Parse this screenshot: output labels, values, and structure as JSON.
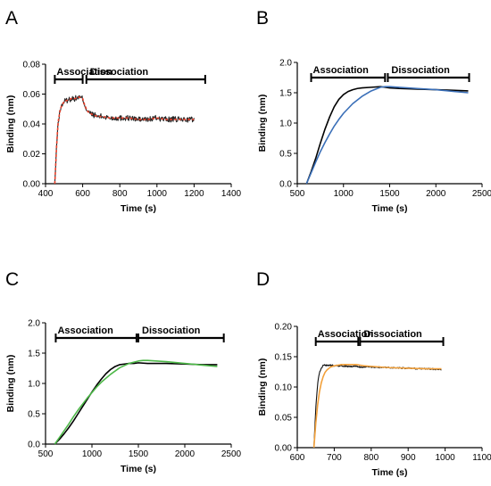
{
  "figure": {
    "panel_letters": [
      "A",
      "B",
      "C",
      "D"
    ]
  },
  "chart_data": [
    {
      "panel": "A",
      "type": "line",
      "xlabel": "Time (s)",
      "ylabel": "Binding (nm)",
      "xlim": [
        400,
        1400
      ],
      "ylim": [
        0,
        0.08
      ],
      "xticks": [
        400,
        600,
        800,
        1000,
        1200,
        1400
      ],
      "xtick_labels": [
        "400",
        "600",
        "800",
        "1000",
        "1200",
        "1400"
      ],
      "yticks": [
        0,
        0.02,
        0.04,
        0.06,
        0.08
      ],
      "ytick_labels": [
        "0.00",
        "0.02",
        "0.04",
        "0.06",
        "0.08"
      ],
      "phases": [
        {
          "label": "Association",
          "start": 450,
          "end": 600
        },
        {
          "label": "Dissociation",
          "start": 620,
          "end": 1260
        }
      ],
      "series": [
        {
          "role": "measured",
          "color": "#262626",
          "noisy": true,
          "noise": 0.0019,
          "dash": "",
          "x": [
            450,
            455,
            460,
            465,
            470,
            480,
            490,
            500,
            520,
            540,
            560,
            580,
            600,
            610,
            620,
            630,
            640,
            660,
            680,
            700,
            750,
            800,
            850,
            900,
            950,
            1000,
            1050,
            1100,
            1150,
            1200
          ],
          "y": [
            0.0,
            0.013,
            0.026,
            0.036,
            0.043,
            0.05,
            0.053,
            0.055,
            0.056,
            0.057,
            0.057,
            0.058,
            0.057,
            0.053,
            0.05,
            0.048,
            0.047,
            0.046,
            0.045,
            0.045,
            0.044,
            0.044,
            0.044,
            0.043,
            0.043,
            0.044,
            0.043,
            0.043,
            0.043,
            0.043
          ]
        },
        {
          "role": "fit",
          "color": "#e8412c",
          "noisy": false,
          "noise": 0,
          "dash": "3,2",
          "x": [
            450,
            455,
            460,
            465,
            470,
            480,
            490,
            500,
            520,
            540,
            560,
            580,
            600,
            610,
            620,
            630,
            640,
            660,
            680,
            700,
            750,
            800,
            850,
            900,
            950,
            1000,
            1050,
            1100,
            1150,
            1200
          ],
          "y": [
            0.0,
            0.013,
            0.026,
            0.036,
            0.043,
            0.05,
            0.053,
            0.055,
            0.056,
            0.057,
            0.057,
            0.058,
            0.057,
            0.053,
            0.05,
            0.048,
            0.047,
            0.046,
            0.045,
            0.045,
            0.044,
            0.044,
            0.044,
            0.043,
            0.043,
            0.044,
            0.043,
            0.043,
            0.043,
            0.043
          ]
        }
      ]
    },
    {
      "panel": "B",
      "type": "line",
      "xlabel": "Time (s)",
      "ylabel": "Binding (nm)",
      "xlim": [
        500,
        2500
      ],
      "ylim": [
        0,
        2.0
      ],
      "xticks": [
        500,
        1000,
        1500,
        2000,
        2500
      ],
      "xtick_labels": [
        "500",
        "1000",
        "1500",
        "2000",
        "2500"
      ],
      "yticks": [
        0,
        0.5,
        1.0,
        1.5,
        2.0
      ],
      "ytick_labels": [
        "0.0",
        "0.5",
        "1.0",
        "1.5",
        "2.0"
      ],
      "phases": [
        {
          "label": "Association",
          "start": 650,
          "end": 1450
        },
        {
          "label": "Dissociation",
          "start": 1480,
          "end": 2360
        }
      ],
      "series": [
        {
          "role": "measured",
          "color": "#000000",
          "noisy": false,
          "noise": 0,
          "dash": "",
          "x": [
            600,
            650,
            700,
            750,
            800,
            850,
            900,
            950,
            1000,
            1050,
            1100,
            1150,
            1200,
            1300,
            1400,
            1450,
            1500,
            1600,
            1800,
            2000,
            2200,
            2350
          ],
          "y": [
            0.0,
            0.2,
            0.42,
            0.67,
            0.9,
            1.1,
            1.27,
            1.39,
            1.47,
            1.52,
            1.55,
            1.57,
            1.58,
            1.59,
            1.6,
            1.59,
            1.58,
            1.57,
            1.56,
            1.55,
            1.54,
            1.53
          ]
        },
        {
          "role": "fit",
          "color": "#3a6fb8",
          "noisy": false,
          "noise": 0,
          "dash": "",
          "x": [
            600,
            650,
            700,
            750,
            800,
            850,
            900,
            950,
            1000,
            1100,
            1200,
            1300,
            1400,
            1450,
            1500,
            1600,
            1800,
            2000,
            2200,
            2350
          ],
          "y": [
            0.0,
            0.18,
            0.36,
            0.53,
            0.68,
            0.82,
            0.95,
            1.06,
            1.16,
            1.32,
            1.44,
            1.53,
            1.59,
            1.6,
            1.6,
            1.59,
            1.57,
            1.55,
            1.52,
            1.5
          ]
        }
      ]
    },
    {
      "panel": "C",
      "type": "line",
      "xlabel": "Time (s)",
      "ylabel": "Binding (nm)",
      "xlim": [
        500,
        2500
      ],
      "ylim": [
        0,
        2.0
      ],
      "xticks": [
        500,
        1000,
        1500,
        2000,
        2500
      ],
      "xtick_labels": [
        "500",
        "1000",
        "1500",
        "2000",
        "2500"
      ],
      "yticks": [
        0,
        0.5,
        1.0,
        1.5,
        2.0
      ],
      "ytick_labels": [
        "0.0",
        "0.5",
        "1.0",
        "1.5",
        "2.0"
      ],
      "phases": [
        {
          "label": "Association",
          "start": 610,
          "end": 1480
        },
        {
          "label": "Dissociation",
          "start": 1500,
          "end": 2420
        }
      ],
      "series": [
        {
          "role": "measured",
          "color": "#000000",
          "noisy": false,
          "noise": 0,
          "dash": "",
          "x": [
            600,
            650,
            700,
            750,
            800,
            850,
            900,
            950,
            1000,
            1050,
            1100,
            1150,
            1200,
            1250,
            1300,
            1350,
            1400,
            1450,
            1500,
            1600,
            1800,
            2000,
            2200,
            2350
          ],
          "y": [
            0.0,
            0.08,
            0.17,
            0.27,
            0.38,
            0.5,
            0.62,
            0.74,
            0.86,
            0.97,
            1.07,
            1.16,
            1.23,
            1.28,
            1.31,
            1.32,
            1.33,
            1.33,
            1.34,
            1.33,
            1.33,
            1.32,
            1.31,
            1.31
          ]
        },
        {
          "role": "fit",
          "color": "#4db848",
          "noisy": false,
          "noise": 0,
          "dash": "",
          "x": [
            600,
            650,
            700,
            750,
            800,
            850,
            900,
            950,
            1000,
            1050,
            1100,
            1200,
            1300,
            1400,
            1500,
            1550,
            1600,
            1800,
            2000,
            2200,
            2350
          ],
          "y": [
            0.0,
            0.11,
            0.22,
            0.33,
            0.45,
            0.56,
            0.66,
            0.76,
            0.85,
            0.94,
            1.02,
            1.15,
            1.26,
            1.33,
            1.37,
            1.38,
            1.38,
            1.36,
            1.33,
            1.3,
            1.28
          ]
        }
      ]
    },
    {
      "panel": "D",
      "type": "line",
      "xlabel": "Time (s)",
      "ylabel": "Binding (nm)",
      "xlim": [
        600,
        1100
      ],
      "ylim": [
        0,
        0.2
      ],
      "xticks": [
        600,
        700,
        800,
        900,
        1000,
        1100
      ],
      "xtick_labels": [
        "600",
        "700",
        "800",
        "900",
        "1000",
        "1100"
      ],
      "yticks": [
        0,
        0.05,
        0.1,
        0.15,
        0.2
      ],
      "ytick_labels": [
        "0.00",
        "0.05",
        "0.10",
        "0.15",
        "0.20"
      ],
      "phases": [
        {
          "label": "Association",
          "start": 650,
          "end": 765
        },
        {
          "label": "Dissociation",
          "start": 770,
          "end": 995
        }
      ],
      "series": [
        {
          "role": "measured",
          "color": "#111111",
          "noisy": true,
          "noise": 0.0012,
          "dash": "",
          "x": [
            645,
            650,
            655,
            660,
            665,
            670,
            675,
            680,
            690,
            700,
            720,
            740,
            760,
            770,
            780,
            800,
            850,
            900,
            950,
            990
          ],
          "y": [
            0.0,
            0.065,
            0.105,
            0.124,
            0.132,
            0.135,
            0.136,
            0.136,
            0.136,
            0.135,
            0.135,
            0.134,
            0.134,
            0.133,
            0.133,
            0.133,
            0.132,
            0.131,
            0.13,
            0.129
          ]
        },
        {
          "role": "fit",
          "color": "#f2a03a",
          "noisy": false,
          "noise": 0,
          "dash": "",
          "x": [
            645,
            650,
            655,
            660,
            665,
            670,
            675,
            680,
            690,
            700,
            720,
            740,
            760,
            770,
            780,
            800,
            850,
            900,
            950,
            990
          ],
          "y": [
            0.0,
            0.04,
            0.07,
            0.092,
            0.107,
            0.117,
            0.124,
            0.128,
            0.133,
            0.135,
            0.137,
            0.137,
            0.137,
            0.136,
            0.135,
            0.134,
            0.132,
            0.131,
            0.13,
            0.13
          ]
        }
      ]
    }
  ]
}
